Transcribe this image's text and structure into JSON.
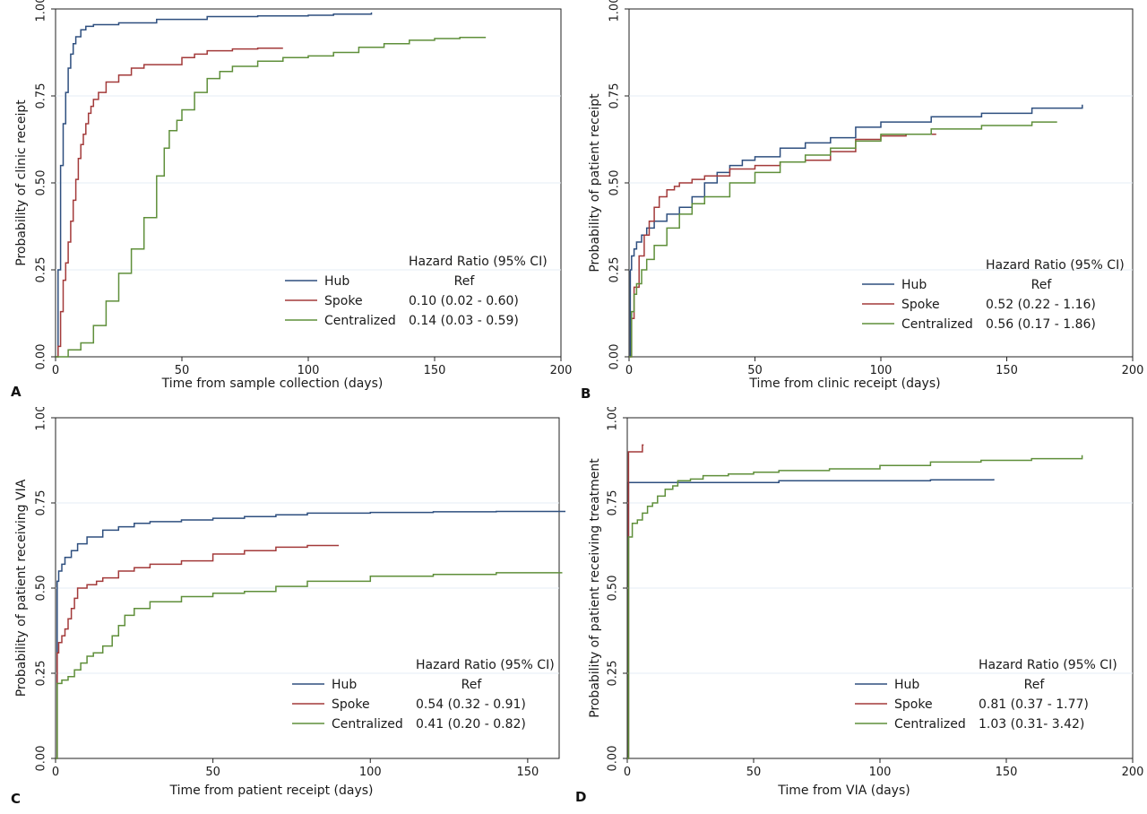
{
  "colors": {
    "hub": "#2e4f7f",
    "spoke": "#a33a3a",
    "centralized": "#5f8f3a",
    "grid": "#e6eef4",
    "frame": "#222222",
    "panel_bg": "#eaf2f7"
  },
  "legend_header": "Hazard Ratio (95% CI)",
  "chart_data": [
    {
      "panel": "A",
      "type": "line",
      "step": true,
      "xlabel": "Time from sample collection (days)",
      "ylabel": "Probability of clinic receipt",
      "xlim": [
        0,
        200
      ],
      "ylim": [
        0,
        1
      ],
      "xticks": [
        0,
        50,
        100,
        150,
        200
      ],
      "yticks": [
        0.0,
        0.25,
        0.5,
        0.75,
        1.0
      ],
      "legend_header": "Hazard Ratio (95% CI)",
      "series": [
        {
          "name": "Hub",
          "hr": "Ref",
          "color": "#2e4f7f",
          "x": [
            0,
            1,
            2,
            3,
            4,
            5,
            6,
            7,
            8,
            10,
            12,
            15,
            25,
            40,
            60,
            80,
            100,
            110,
            125
          ],
          "y": [
            0,
            0.25,
            0.55,
            0.67,
            0.76,
            0.83,
            0.87,
            0.9,
            0.92,
            0.94,
            0.95,
            0.955,
            0.96,
            0.97,
            0.978,
            0.98,
            0.982,
            0.985,
            0.99
          ]
        },
        {
          "name": "Spoke",
          "hr": "0.10 (0.02 - 0.60)",
          "color": "#a33a3a",
          "x": [
            0,
            1,
            2,
            3,
            4,
            5,
            6,
            7,
            8,
            9,
            10,
            11,
            12,
            13,
            14,
            15,
            17,
            20,
            25,
            30,
            35,
            40,
            45,
            50,
            55,
            60,
            70,
            80,
            90
          ],
          "y": [
            0,
            0.03,
            0.13,
            0.22,
            0.27,
            0.33,
            0.39,
            0.45,
            0.51,
            0.57,
            0.61,
            0.64,
            0.67,
            0.7,
            0.72,
            0.74,
            0.76,
            0.79,
            0.81,
            0.83,
            0.84,
            0.84,
            0.84,
            0.86,
            0.87,
            0.88,
            0.885,
            0.887,
            0.887
          ]
        },
        {
          "name": "Centralized",
          "hr": "0.14 (0.03 - 0.59)",
          "color": "#5f8f3a",
          "x": [
            0,
            5,
            10,
            15,
            20,
            25,
            30,
            35,
            40,
            43,
            45,
            48,
            50,
            55,
            60,
            65,
            70,
            80,
            90,
            100,
            110,
            120,
            130,
            140,
            150,
            160,
            170
          ],
          "y": [
            0,
            0.02,
            0.04,
            0.09,
            0.16,
            0.24,
            0.31,
            0.4,
            0.52,
            0.6,
            0.65,
            0.68,
            0.71,
            0.76,
            0.8,
            0.82,
            0.835,
            0.85,
            0.86,
            0.865,
            0.875,
            0.89,
            0.9,
            0.91,
            0.915,
            0.918,
            0.92
          ]
        }
      ]
    },
    {
      "panel": "B",
      "type": "line",
      "step": true,
      "xlabel": "Time from clinic receipt (days)",
      "ylabel": "Probability of patient receipt",
      "xlim": [
        0,
        200
      ],
      "ylim": [
        0,
        1
      ],
      "xticks": [
        0,
        50,
        100,
        150,
        200
      ],
      "yticks": [
        0.0,
        0.25,
        0.5,
        0.75,
        1.0
      ],
      "legend_header": "Hazard Ratio (95% CI)",
      "series": [
        {
          "name": "Hub",
          "hr": "Ref",
          "color": "#2e4f7f",
          "x": [
            0,
            0.5,
            1,
            2,
            3,
            5,
            7,
            10,
            15,
            20,
            25,
            30,
            35,
            40,
            45,
            50,
            60,
            70,
            80,
            90,
            100,
            120,
            140,
            160,
            180
          ],
          "y": [
            0,
            0.25,
            0.29,
            0.31,
            0.33,
            0.35,
            0.37,
            0.39,
            0.41,
            0.43,
            0.46,
            0.5,
            0.53,
            0.55,
            0.565,
            0.575,
            0.6,
            0.615,
            0.63,
            0.66,
            0.675,
            0.69,
            0.7,
            0.715,
            0.725
          ]
        },
        {
          "name": "Spoke",
          "hr": "0.52 (0.22 - 1.16)",
          "color": "#a33a3a",
          "x": [
            0,
            1,
            2,
            4,
            6,
            8,
            10,
            12,
            15,
            18,
            20,
            25,
            30,
            40,
            50,
            60,
            70,
            80,
            90,
            100,
            110,
            122
          ],
          "y": [
            0,
            0.11,
            0.2,
            0.29,
            0.35,
            0.39,
            0.43,
            0.46,
            0.48,
            0.49,
            0.5,
            0.51,
            0.52,
            0.54,
            0.55,
            0.56,
            0.565,
            0.59,
            0.625,
            0.635,
            0.64,
            0.64
          ]
        },
        {
          "name": "Centralized",
          "hr": "0.56 (0.17 - 1.86)",
          "color": "#5f8f3a",
          "x": [
            0,
            1,
            2,
            3,
            5,
            7,
            10,
            15,
            20,
            25,
            30,
            40,
            50,
            60,
            70,
            80,
            90,
            100,
            120,
            140,
            160,
            170
          ],
          "y": [
            0,
            0.13,
            0.18,
            0.21,
            0.25,
            0.28,
            0.32,
            0.37,
            0.41,
            0.44,
            0.46,
            0.5,
            0.53,
            0.56,
            0.58,
            0.6,
            0.62,
            0.64,
            0.655,
            0.665,
            0.675,
            0.675
          ]
        }
      ]
    },
    {
      "panel": "C",
      "type": "line",
      "step": true,
      "xlabel": "Time from patient receipt (days)",
      "ylabel": "Probability of patient receiving VIA",
      "xlim": [
        0,
        160
      ],
      "ylim": [
        0,
        1
      ],
      "xticks": [
        0,
        50,
        100,
        150
      ],
      "yticks": [
        0.0,
        0.25,
        0.5,
        0.75,
        1.0
      ],
      "legend_header": "Hazard Ratio (95% CI)",
      "series": [
        {
          "name": "Hub",
          "hr": "Ref",
          "color": "#2e4f7f",
          "x": [
            0,
            0.5,
            1,
            2,
            3,
            5,
            7,
            10,
            15,
            20,
            25,
            30,
            40,
            50,
            60,
            70,
            80,
            100,
            120,
            140,
            162
          ],
          "y": [
            0,
            0.52,
            0.55,
            0.57,
            0.59,
            0.61,
            0.63,
            0.65,
            0.67,
            0.68,
            0.69,
            0.695,
            0.7,
            0.705,
            0.71,
            0.715,
            0.72,
            0.722,
            0.724,
            0.725,
            0.725
          ]
        },
        {
          "name": "Spoke",
          "hr": "0.54 (0.32 - 0.91)",
          "color": "#a33a3a",
          "x": [
            0,
            0.5,
            1,
            2,
            3,
            4,
            5,
            6,
            7,
            10,
            13,
            15,
            20,
            25,
            30,
            40,
            50,
            60,
            70,
            80,
            90
          ],
          "y": [
            0,
            0.31,
            0.34,
            0.36,
            0.38,
            0.41,
            0.44,
            0.47,
            0.5,
            0.51,
            0.52,
            0.53,
            0.55,
            0.56,
            0.57,
            0.58,
            0.6,
            0.61,
            0.62,
            0.625,
            0.625
          ]
        },
        {
          "name": "Centralized",
          "hr": "0.41 (0.20 - 0.82)",
          "color": "#5f8f3a",
          "x": [
            0,
            0.5,
            2,
            4,
            6,
            8,
            10,
            12,
            15,
            18,
            20,
            22,
            25,
            30,
            40,
            50,
            60,
            70,
            80,
            100,
            120,
            140,
            161
          ],
          "y": [
            0,
            0.22,
            0.23,
            0.24,
            0.26,
            0.28,
            0.3,
            0.31,
            0.33,
            0.36,
            0.39,
            0.42,
            0.44,
            0.46,
            0.475,
            0.485,
            0.49,
            0.505,
            0.52,
            0.535,
            0.54,
            0.545,
            0.545
          ]
        }
      ]
    },
    {
      "panel": "D",
      "type": "line",
      "step": true,
      "xlabel": "Time from VIA (days)",
      "ylabel": "Probability of patient receiving treatment",
      "xlim": [
        0,
        200
      ],
      "ylim": [
        0,
        1
      ],
      "xticks": [
        0,
        50,
        100,
        150,
        200
      ],
      "yticks": [
        0.0,
        0.25,
        0.5,
        0.75,
        1.0
      ],
      "legend_header": "Hazard Ratio (95% CI)",
      "series": [
        {
          "name": "Hub",
          "hr": "Ref",
          "color": "#2e4f7f",
          "x": [
            0,
            0.5,
            20,
            40,
            60,
            80,
            100,
            120,
            145
          ],
          "y": [
            0,
            0.81,
            0.81,
            0.81,
            0.815,
            0.815,
            0.815,
            0.818,
            0.82
          ]
        },
        {
          "name": "Spoke",
          "hr": "0.81 (0.37 - 1.77)",
          "color": "#a33a3a",
          "x": [
            0,
            0.5,
            6,
            6.5
          ],
          "y": [
            0,
            0.9,
            0.92,
            0.92
          ]
        },
        {
          "name": "Centralized",
          "hr": "1.03 (0.31- 3.42)",
          "color": "#5f8f3a",
          "x": [
            0,
            0.5,
            2,
            4,
            6,
            8,
            10,
            12,
            15,
            18,
            20,
            25,
            30,
            40,
            50,
            60,
            80,
            100,
            120,
            140,
            160,
            180
          ],
          "y": [
            0,
            0.65,
            0.69,
            0.7,
            0.72,
            0.74,
            0.75,
            0.77,
            0.79,
            0.8,
            0.815,
            0.82,
            0.83,
            0.835,
            0.84,
            0.845,
            0.85,
            0.86,
            0.87,
            0.875,
            0.88,
            0.89
          ]
        }
      ]
    }
  ]
}
